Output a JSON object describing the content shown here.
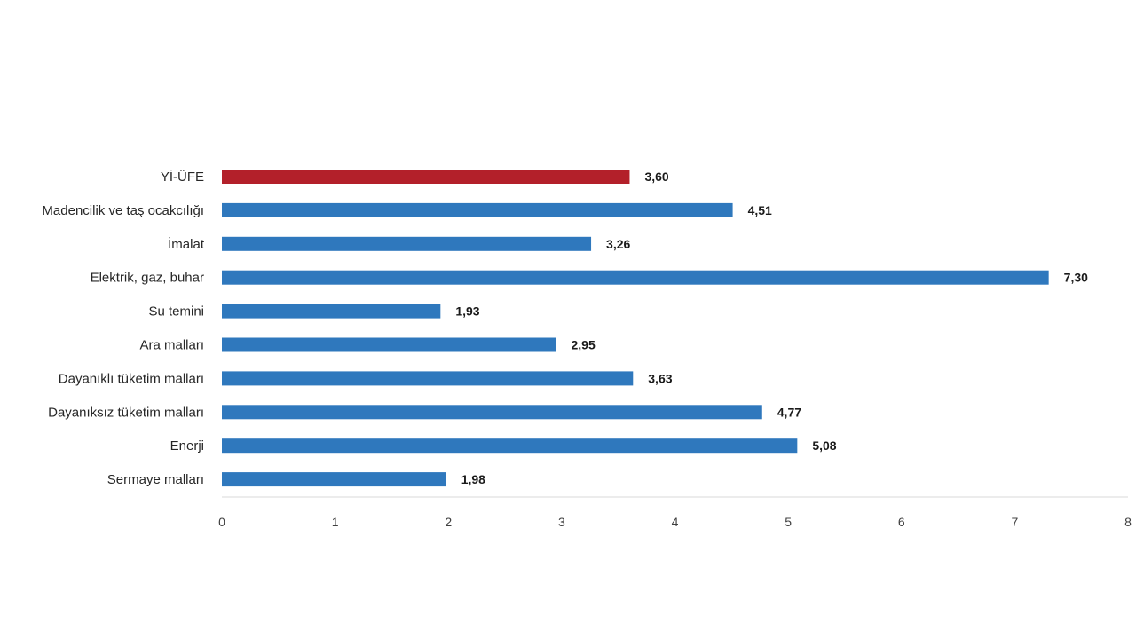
{
  "chart_data": {
    "type": "bar",
    "orientation": "horizontal",
    "categories": [
      "Yİ-ÜFE",
      "Madencilik ve taş ocakcılığı",
      "İmalat",
      "Elektrik, gaz, buhar",
      "Su temini",
      "Ara malları",
      "Dayanıklı tüketim malları",
      "Dayanıksız tüketim malları",
      "Enerji",
      "Sermaye malları"
    ],
    "values": [
      3.6,
      4.51,
      3.26,
      7.3,
      1.93,
      2.95,
      3.63,
      4.77,
      5.08,
      1.98
    ],
    "value_labels": [
      "3,60",
      "4,51",
      "3,26",
      "7,30",
      "1,93",
      "2,95",
      "3,63",
      "4,77",
      "5,08",
      "1,98"
    ],
    "xlim": [
      0,
      8
    ],
    "x_ticks": [
      "0",
      "1",
      "2",
      "3",
      "4",
      "5",
      "6",
      "7",
      "8"
    ],
    "colors": {
      "highlight": "#b3202a",
      "default": "#2f78bd",
      "axis": "#d9d9d9"
    },
    "highlight_index": 0,
    "grid": false,
    "title": "",
    "xlabel": "",
    "ylabel": ""
  }
}
